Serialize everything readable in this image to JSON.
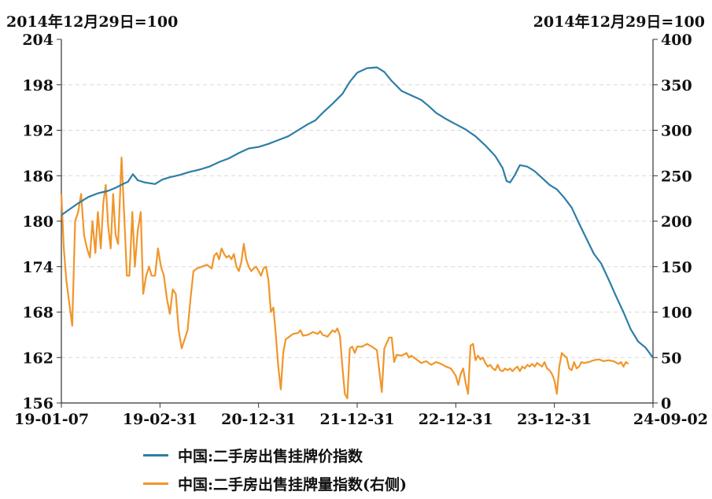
{
  "chart_data": {
    "type": "line",
    "left_axis_unit": "2014年12月29日=100",
    "right_axis_unit": "2014年12月29日=100",
    "y_left": {
      "min": 156,
      "max": 204,
      "ticks": [
        "156",
        "162",
        "168",
        "174",
        "180",
        "186",
        "192",
        "198",
        "204"
      ]
    },
    "y_right": {
      "min": 0,
      "max": 400,
      "ticks": [
        "0",
        "50",
        "100",
        "150",
        "200",
        "250",
        "300",
        "350",
        "400"
      ]
    },
    "x_ticks": [
      "19-01-07",
      "19-02-31",
      "20-12-31",
      "21-12-31",
      "22-12-31",
      "23-12-31",
      "24-09-02"
    ],
    "grid": true,
    "legend_position": "bottom",
    "colors": {
      "price": "#2e7ea6",
      "volume": "#f0962b"
    },
    "series": [
      {
        "name": "中国:二手房出售挂牌价指数",
        "axis": "left",
        "points": [
          [
            0.0,
            180.8
          ],
          [
            1.5,
            181.5
          ],
          [
            3.5,
            182.4
          ],
          [
            5.5,
            183.2
          ],
          [
            7.5,
            183.7
          ],
          [
            9.5,
            184.0
          ],
          [
            11.0,
            184.4
          ],
          [
            12.5,
            184.9
          ],
          [
            13.5,
            185.2
          ],
          [
            14.5,
            186.2
          ],
          [
            15.5,
            185.4
          ],
          [
            17.0,
            185.1
          ],
          [
            19.0,
            184.9
          ],
          [
            20.5,
            185.5
          ],
          [
            22.0,
            185.8
          ],
          [
            24.0,
            186.1
          ],
          [
            26.0,
            186.5
          ],
          [
            28.0,
            186.8
          ],
          [
            30.0,
            187.2
          ],
          [
            32.0,
            187.8
          ],
          [
            34.0,
            188.3
          ],
          [
            36.0,
            189.0
          ],
          [
            38.0,
            189.6
          ],
          [
            40.0,
            189.8
          ],
          [
            42.0,
            190.2
          ],
          [
            44.0,
            190.7
          ],
          [
            46.0,
            191.2
          ],
          [
            48.0,
            192.0
          ],
          [
            50.0,
            192.8
          ],
          [
            51.5,
            193.3
          ],
          [
            53.0,
            194.3
          ],
          [
            55.0,
            195.5
          ],
          [
            57.0,
            196.8
          ],
          [
            58.5,
            198.4
          ],
          [
            60.0,
            199.6
          ],
          [
            62.0,
            200.2
          ],
          [
            64.0,
            200.3
          ],
          [
            65.5,
            199.7
          ],
          [
            67.0,
            198.5
          ],
          [
            69.0,
            197.2
          ],
          [
            71.0,
            196.6
          ],
          [
            73.0,
            196.0
          ],
          [
            74.5,
            195.2
          ],
          [
            76.0,
            194.3
          ],
          [
            78.0,
            193.5
          ],
          [
            80.0,
            192.8
          ],
          [
            82.0,
            192.1
          ],
          [
            84.0,
            191.2
          ],
          [
            86.0,
            190.0
          ],
          [
            88.0,
            188.6
          ],
          [
            89.5,
            187.0
          ],
          [
            90.3,
            185.3
          ],
          [
            91.0,
            185.1
          ],
          [
            92.0,
            186.1
          ],
          [
            93.0,
            187.4
          ],
          [
            94.5,
            187.2
          ],
          [
            96.0,
            186.6
          ],
          [
            97.5,
            185.7
          ],
          [
            99.0,
            184.8
          ],
          [
            100.5,
            184.2
          ],
          [
            102.0,
            183.1
          ],
          [
            103.5,
            181.8
          ],
          [
            105.0,
            179.7
          ],
          [
            106.5,
            177.7
          ],
          [
            108.0,
            175.7
          ],
          [
            109.5,
            174.4
          ],
          [
            111.0,
            172.3
          ],
          [
            112.5,
            170.1
          ],
          [
            114.0,
            168.0
          ],
          [
            115.5,
            165.7
          ],
          [
            117.0,
            164.1
          ],
          [
            118.5,
            163.3
          ],
          [
            119.5,
            162.4
          ],
          [
            120.0,
            162.0
          ]
        ]
      },
      {
        "name": "中国:二手房出售挂牌量指数(右侧)",
        "axis": "right",
        "points": [
          [
            0.0,
            230
          ],
          [
            0.5,
            170
          ],
          [
            1.0,
            135
          ],
          [
            1.6,
            110
          ],
          [
            2.2,
            85
          ],
          [
            2.8,
            200
          ],
          [
            3.4,
            210
          ],
          [
            4.0,
            230
          ],
          [
            4.6,
            185
          ],
          [
            5.2,
            170
          ],
          [
            5.8,
            160
          ],
          [
            6.3,
            200
          ],
          [
            6.9,
            165
          ],
          [
            7.4,
            210
          ],
          [
            8.0,
            170
          ],
          [
            8.5,
            220
          ],
          [
            9.0,
            240
          ],
          [
            9.5,
            195
          ],
          [
            10.0,
            170
          ],
          [
            10.5,
            230
          ],
          [
            11.0,
            185
          ],
          [
            11.5,
            175
          ],
          [
            12.2,
            270
          ],
          [
            12.8,
            200
          ],
          [
            13.3,
            140
          ],
          [
            13.8,
            140
          ],
          [
            14.4,
            210
          ],
          [
            14.9,
            150
          ],
          [
            15.5,
            190
          ],
          [
            16.1,
            210
          ],
          [
            16.6,
            120
          ],
          [
            17.2,
            140
          ],
          [
            17.8,
            150
          ],
          [
            18.3,
            140
          ],
          [
            19.0,
            140
          ],
          [
            19.6,
            170
          ],
          [
            20.2,
            150
          ],
          [
            20.8,
            140
          ],
          [
            21.4,
            115
          ],
          [
            22.0,
            98
          ],
          [
            22.6,
            125
          ],
          [
            23.2,
            120
          ],
          [
            23.8,
            80
          ],
          [
            24.4,
            60
          ],
          [
            25.0,
            70
          ],
          [
            25.6,
            80
          ],
          [
            26.2,
            115
          ],
          [
            26.8,
            145
          ],
          [
            27.5,
            148
          ],
          [
            28.5,
            150
          ],
          [
            29.5,
            152
          ],
          [
            30.5,
            148
          ],
          [
            31.0,
            162
          ],
          [
            31.5,
            165
          ],
          [
            32.0,
            158
          ],
          [
            32.5,
            170
          ],
          [
            33.0,
            164
          ],
          [
            33.5,
            160
          ],
          [
            34.0,
            162
          ],
          [
            34.5,
            158
          ],
          [
            35.0,
            164
          ],
          [
            35.5,
            150
          ],
          [
            36.0,
            145
          ],
          [
            36.5,
            155
          ],
          [
            37.0,
            175
          ],
          [
            37.5,
            158
          ],
          [
            38.0,
            150
          ],
          [
            38.5,
            145
          ],
          [
            39.0,
            148
          ],
          [
            39.5,
            150
          ],
          [
            40.0,
            145
          ],
          [
            40.5,
            140
          ],
          [
            41.0,
            148
          ],
          [
            41.5,
            150
          ],
          [
            42.0,
            135
          ],
          [
            42.5,
            100
          ],
          [
            43.0,
            105
          ],
          [
            43.5,
            75
          ],
          [
            44.0,
            40
          ],
          [
            44.5,
            15
          ],
          [
            45.0,
            55
          ],
          [
            45.5,
            70
          ],
          [
            46.0,
            72
          ],
          [
            47.0,
            76
          ],
          [
            48.0,
            77
          ],
          [
            48.5,
            80
          ],
          [
            49.0,
            74
          ],
          [
            50.0,
            75
          ],
          [
            51.0,
            78
          ],
          [
            52.0,
            76
          ],
          [
            52.5,
            79
          ],
          [
            53.0,
            75
          ],
          [
            54.0,
            73
          ],
          [
            55.0,
            80
          ],
          [
            55.5,
            78
          ],
          [
            56.0,
            82
          ],
          [
            56.5,
            74
          ],
          [
            57.0,
            40
          ],
          [
            57.5,
            10
          ],
          [
            58.0,
            5
          ],
          [
            58.5,
            60
          ],
          [
            59.0,
            62
          ],
          [
            59.5,
            55
          ],
          [
            60.0,
            62
          ],
          [
            61.0,
            62
          ],
          [
            62.0,
            65
          ],
          [
            63.0,
            62
          ],
          [
            64.0,
            58
          ],
          [
            64.5,
            35
          ],
          [
            65.0,
            12
          ],
          [
            65.5,
            60
          ],
          [
            66.5,
            72
          ],
          [
            67.0,
            72
          ],
          [
            67.5,
            45
          ],
          [
            68.0,
            53
          ],
          [
            69.0,
            52
          ],
          [
            70.0,
            55
          ],
          [
            70.5,
            50
          ],
          [
            71.0,
            52
          ],
          [
            72.0,
            48
          ],
          [
            73.0,
            44
          ],
          [
            74.0,
            46
          ],
          [
            75.0,
            42
          ],
          [
            76.0,
            45
          ],
          [
            77.0,
            43
          ],
          [
            78.0,
            40
          ],
          [
            79.0,
            38
          ],
          [
            80.0,
            30
          ],
          [
            80.5,
            20
          ],
          [
            81.0,
            32
          ],
          [
            81.5,
            38
          ],
          [
            82.0,
            22
          ],
          [
            82.5,
            10
          ],
          [
            83.0,
            63
          ],
          [
            83.5,
            65
          ],
          [
            84.0,
            47
          ],
          [
            84.5,
            52
          ],
          [
            85.0,
            48
          ],
          [
            85.5,
            50
          ],
          [
            86.0,
            44
          ],
          [
            86.5,
            40
          ],
          [
            87.0,
            42
          ],
          [
            87.5,
            38
          ],
          [
            88.0,
            36
          ],
          [
            88.5,
            42
          ],
          [
            89.0,
            36
          ],
          [
            89.5,
            35
          ],
          [
            90.0,
            38
          ],
          [
            90.5,
            36
          ],
          [
            91.0,
            38
          ],
          [
            91.5,
            35
          ],
          [
            92.0,
            38
          ],
          [
            92.5,
            40
          ],
          [
            93.0,
            35
          ],
          [
            93.5,
            40
          ],
          [
            94.0,
            38
          ],
          [
            94.5,
            42
          ],
          [
            95.0,
            40
          ],
          [
            95.5,
            43
          ],
          [
            96.0,
            40
          ],
          [
            96.5,
            44
          ],
          [
            97.0,
            42
          ],
          [
            97.5,
            40
          ],
          [
            98.0,
            45
          ],
          [
            98.5,
            38
          ],
          [
            99.0,
            36
          ],
          [
            99.5,
            32
          ],
          [
            100.0,
            25
          ],
          [
            100.5,
            10
          ],
          [
            101.0,
            40
          ],
          [
            101.5,
            55
          ],
          [
            102.0,
            52
          ],
          [
            102.5,
            50
          ],
          [
            103.0,
            38
          ],
          [
            103.5,
            36
          ],
          [
            104.0,
            45
          ],
          [
            104.5,
            38
          ],
          [
            105.0,
            40
          ],
          [
            105.5,
            45
          ],
          [
            106.0,
            44
          ],
          [
            107.0,
            45
          ],
          [
            108.0,
            47
          ],
          [
            109.0,
            48
          ],
          [
            110.0,
            46
          ],
          [
            111.0,
            47
          ],
          [
            112.0,
            46
          ],
          [
            113.0,
            43
          ],
          [
            113.5,
            45
          ],
          [
            114.0,
            40
          ],
          [
            114.5,
            45
          ],
          [
            115.0,
            43
          ]
        ]
      }
    ]
  }
}
